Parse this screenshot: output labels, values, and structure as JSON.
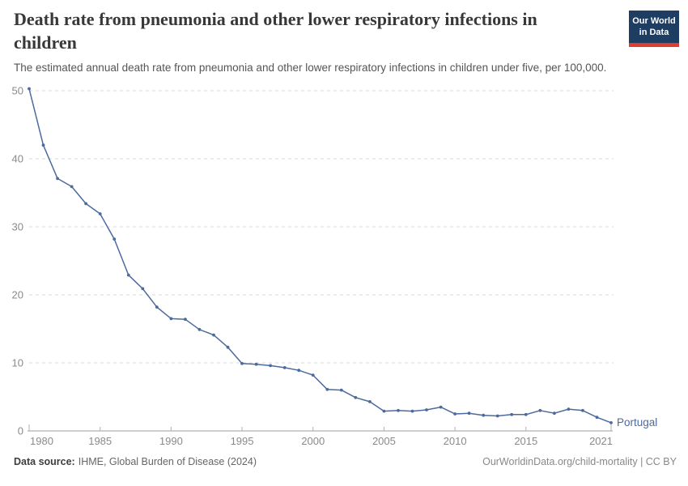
{
  "header": {
    "logo": {
      "line1": "Our World",
      "line2": "in Data",
      "bg_color": "#1d3d63",
      "accent_color": "#dc3e32"
    }
  },
  "chart_data": {
    "type": "line",
    "title": "Death rate from pneumonia and other lower respiratory infections in children",
    "subtitle": "The estimated annual death rate from pneumonia and other lower respiratory infections in children under five, per 100,000.",
    "xlabel": "",
    "ylabel": "",
    "xlim": [
      1980,
      2021
    ],
    "ylim": [
      0,
      50
    ],
    "x_ticks": [
      1980,
      1985,
      1990,
      1995,
      2000,
      2005,
      2010,
      2015,
      2021
    ],
    "y_ticks": [
      0,
      10,
      20,
      30,
      40,
      50
    ],
    "grid": "horizontal-dashed",
    "legend_position": "end-of-line-label",
    "series": [
      {
        "name": "Portugal",
        "color": "#4c6a9c",
        "x": [
          1980,
          1981,
          1982,
          1983,
          1984,
          1985,
          1986,
          1987,
          1988,
          1989,
          1990,
          1991,
          1992,
          1993,
          1994,
          1995,
          1996,
          1997,
          1998,
          1999,
          2000,
          2001,
          2002,
          2003,
          2004,
          2005,
          2006,
          2007,
          2008,
          2009,
          2010,
          2011,
          2012,
          2013,
          2014,
          2015,
          2016,
          2017,
          2018,
          2019,
          2020,
          2021
        ],
        "values": [
          50.3,
          42.0,
          37.1,
          35.9,
          33.4,
          31.9,
          28.2,
          22.9,
          20.9,
          18.2,
          16.5,
          16.4,
          14.9,
          14.1,
          12.3,
          9.9,
          9.8,
          9.6,
          9.3,
          8.9,
          8.2,
          6.1,
          6.0,
          4.9,
          4.3,
          2.9,
          3.0,
          2.9,
          3.1,
          3.5,
          2.5,
          2.6,
          2.3,
          2.2,
          2.4,
          2.4,
          3.0,
          2.6,
          3.2,
          3.0,
          2.0,
          1.2
        ]
      }
    ],
    "colors": {
      "gridline": "#dadada",
      "axis_line": "#9e9e9e",
      "tick_mark": "#b0b0b0",
      "tick_label": "#8a8a8a"
    }
  },
  "footer": {
    "source_label": "Data source:",
    "source_value": "IHME, Global Burden of Disease (2024)",
    "link": "OurWorldinData.org/child-mortality | CC BY"
  }
}
